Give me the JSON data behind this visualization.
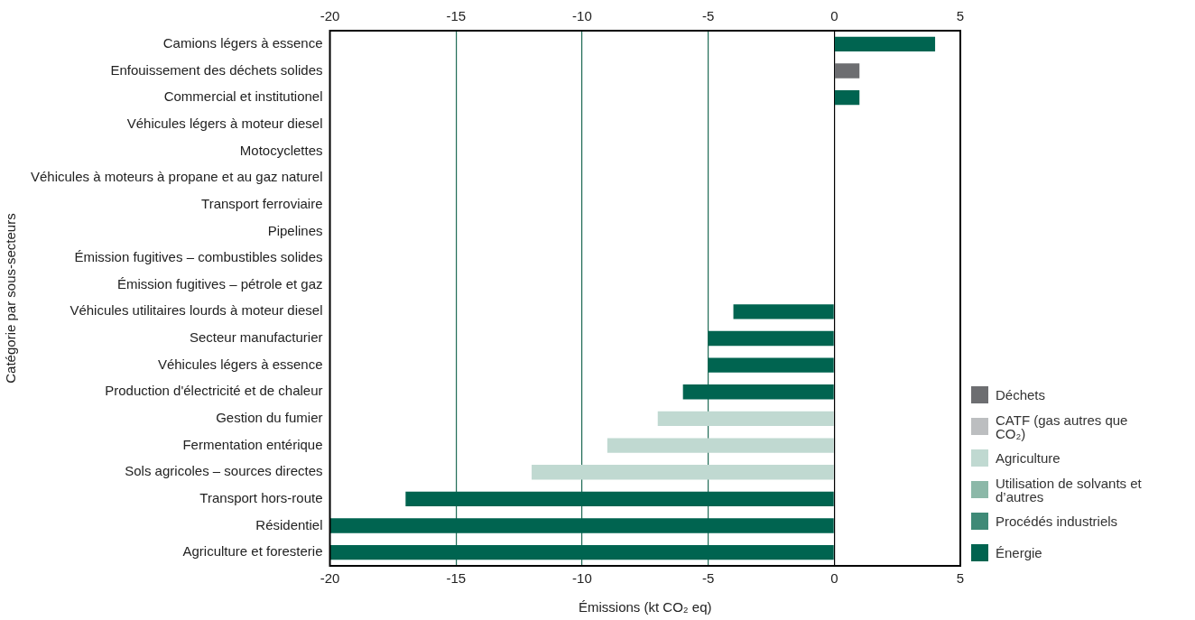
{
  "chart_data": {
    "type": "bar",
    "orientation": "horizontal",
    "stacked": true,
    "xlabel": "Émissions (kt CO₂ eq)",
    "ylabel": "Catégorie par sous-secteurs",
    "categories": [
      "Camions légers à essence",
      "Enfouissement des déchets solides",
      "Commercial et institutionel",
      "Véhicules légers à moteur diesel",
      "Motocyclettes",
      "Véhicules à moteurs à propane et au gaz naturel",
      "Transport ferroviaire",
      "Pipelines",
      "Émission fugitives – combustibles solides",
      "Émission fugitives – pétrole et gaz",
      "Véhicules utilitaires lourds à moteur diesel",
      "Secteur manufacturier",
      "Véhicules légers à essence",
      "Production d'électricité et de chaleur",
      "Gestion du fumier",
      "Fermentation entérique",
      "Sols agricoles – sources directes",
      "Transport hors-route",
      "Résidentiel",
      "Agriculture et foresterie"
    ],
    "series": [
      {
        "name": "Déchets",
        "color": "#6d6e71",
        "values": [
          null,
          1,
          null,
          null,
          null,
          null,
          null,
          null,
          null,
          null,
          null,
          null,
          null,
          null,
          null,
          null,
          null,
          null,
          null,
          null
        ]
      },
      {
        "name": "CATF (gas autres que CO₂)",
        "color": "#bcbec0",
        "values": [
          null,
          null,
          null,
          null,
          null,
          null,
          null,
          null,
          null,
          null,
          null,
          null,
          null,
          null,
          null,
          null,
          null,
          null,
          null,
          null
        ]
      },
      {
        "name": "Agriculture",
        "color": "#c0d9d1",
        "values": [
          null,
          null,
          null,
          null,
          null,
          null,
          null,
          null,
          null,
          null,
          null,
          null,
          null,
          null,
          -7,
          -9,
          -12,
          null,
          null,
          null
        ]
      },
      {
        "name": "Utilisation de solvants et d’autres",
        "color": "#8cb8a8",
        "values": [
          null,
          null,
          null,
          null,
          null,
          null,
          null,
          null,
          null,
          null,
          null,
          null,
          null,
          null,
          null,
          null,
          null,
          null,
          null,
          null
        ]
      },
      {
        "name": "Procédés industriels",
        "color": "#3f8a77",
        "values": [
          null,
          null,
          null,
          null,
          null,
          null,
          null,
          null,
          null,
          null,
          null,
          null,
          null,
          null,
          null,
          null,
          null,
          null,
          null,
          null
        ]
      },
      {
        "name": "Énergie",
        "color": "#006450",
        "values": [
          4,
          null,
          1,
          null,
          null,
          null,
          null,
          null,
          null,
          null,
          -4,
          -5,
          -5,
          -6,
          null,
          null,
          null,
          -17,
          -20,
          -20
        ]
      }
    ],
    "xlim": [
      -20,
      5
    ],
    "xticks": [
      -20,
      -15,
      -10,
      -5,
      0,
      5
    ],
    "x2lim": [
      -20,
      5
    ],
    "x2ticks": [
      -20,
      -15,
      -10,
      -5,
      0,
      5
    ],
    "grid": "x",
    "legend": "right"
  }
}
